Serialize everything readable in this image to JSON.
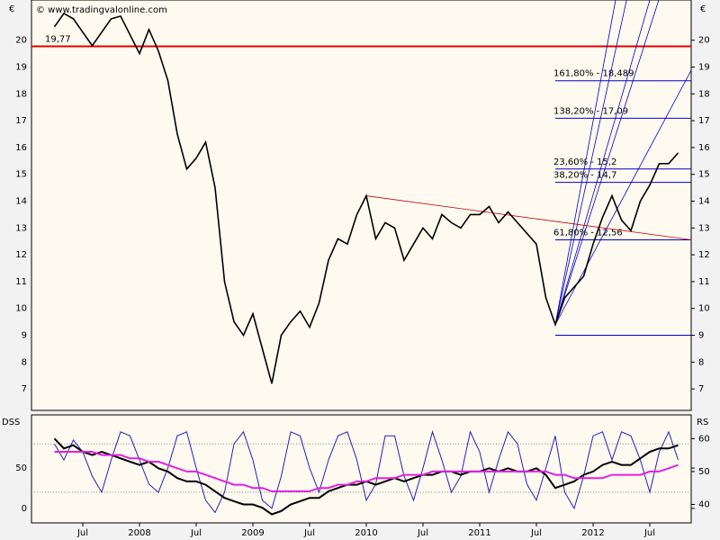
{
  "chart_data": [
    {
      "type": "line",
      "watermark": "© www.tradingvalonline.com",
      "y_label": "€",
      "y2_label": "€",
      "categories": [
        null,
        null,
        null,
        "Jul",
        null,
        null,
        null,
        null,
        null,
        "2008",
        null,
        null,
        null,
        null,
        null,
        "Jul",
        null,
        null,
        null,
        null,
        null,
        "2009",
        null,
        null,
        null,
        null,
        null,
        "Jul",
        null,
        null,
        null,
        null,
        null,
        "2010",
        null,
        null,
        null,
        null,
        null,
        "Jul",
        null,
        null,
        null,
        null,
        null,
        "2011",
        null,
        null,
        null,
        null,
        null,
        "Jul",
        null,
        null,
        null,
        null,
        null,
        "2012",
        null,
        null,
        null,
        null,
        null,
        "Jul",
        null,
        null,
        null
      ],
      "values": [
        20.5,
        21,
        20.8,
        20.3,
        19.8,
        20.3,
        20.8,
        20.9,
        20.2,
        19.5,
        20.4,
        19.6,
        18.5,
        16.5,
        15.2,
        15.6,
        16.2,
        14.5,
        11.0,
        9.5,
        9.0,
        9.8,
        8.5,
        7.2,
        9.0,
        9.5,
        9.9,
        9.3,
        10.2,
        11.8,
        12.6,
        12.4,
        13.5,
        14.2,
        12.6,
        13.2,
        13.0,
        11.8,
        12.4,
        13.0,
        12.6,
        13.5,
        13.2,
        13.0,
        13.5,
        13.5,
        13.8,
        13.2,
        13.6,
        13.2,
        12.8,
        12.4,
        10.4,
        9.4,
        10.4,
        10.8,
        11.2,
        12.4,
        13.4,
        14.2,
        13.3,
        12.9,
        14.0,
        14.6,
        15.4,
        15.4,
        15.8
      ],
      "color": "#000000",
      "ylim": [
        6.2,
        21.5
      ],
      "yticks": [
        7,
        8,
        9,
        10,
        11,
        12,
        13,
        14,
        15,
        16,
        17,
        18,
        19,
        20
      ],
      "lines": [
        {
          "value": 19.77,
          "label": "19,77",
          "color": "#e00000"
        },
        {
          "value": 18.489,
          "label": "161,80% - 18,489",
          "color": "#0000cc"
        },
        {
          "value": 17.09,
          "label": "138,20% - 17,09",
          "color": "#0000cc"
        },
        {
          "value": 15.2,
          "label": "23,60% - 15,2",
          "color": "#0000cc"
        },
        {
          "value": 14.7,
          "label": "38,20% - 14,7",
          "color": "#0000cc"
        },
        {
          "value": 12.56,
          "label": "61,80% - 12,56",
          "color": "#0000cc"
        },
        {
          "value": 9,
          "color": "#0000cc"
        }
      ]
    },
    {
      "type": "line",
      "y_label": "DSS",
      "y2_label": "RS",
      "ylim": [
        -18,
        116
      ],
      "yticks": [
        0,
        50
      ],
      "levels": [
        20,
        80
      ],
      "y2lim": [
        34.4,
        67.2
      ],
      "y2ticks": [
        40,
        50,
        60
      ],
      "series": [
        {
          "color": "#2020c0",
          "values": [
            80,
            60,
            85,
            70,
            40,
            20,
            60,
            95,
            90,
            60,
            30,
            20,
            50,
            90,
            95,
            50,
            10,
            -5,
            20,
            80,
            95,
            60,
            10,
            0,
            40,
            95,
            90,
            50,
            20,
            60,
            90,
            95,
            60,
            10,
            30,
            90,
            90,
            40,
            10,
            50,
            95,
            60,
            20,
            40,
            95,
            70,
            20,
            60,
            95,
            80,
            30,
            10,
            50,
            90,
            20,
            0,
            40,
            90,
            95,
            60,
            95,
            90,
            60,
            20,
            70,
            95,
            60
          ]
        },
        {
          "color": "#000000",
          "axis": "y2",
          "values": [
            60,
            57,
            58,
            56,
            55,
            56,
            55,
            54,
            53,
            52,
            53,
            51,
            50,
            48,
            47,
            47,
            46,
            44,
            42,
            41,
            40,
            40,
            39,
            37,
            38,
            40,
            41,
            42,
            42,
            44,
            45,
            46,
            46,
            47,
            46,
            47,
            48,
            47,
            48,
            49,
            49,
            50,
            50,
            49,
            50,
            50,
            51,
            50,
            51,
            50,
            50,
            51,
            49,
            45,
            46,
            47,
            49,
            50,
            52,
            53,
            52,
            52,
            54,
            56,
            57,
            57,
            58
          ]
        },
        {
          "color": "#e020e0",
          "axis": "y2",
          "values": [
            56,
            56,
            56,
            56,
            56,
            55,
            55,
            55,
            54,
            54,
            53,
            53,
            52,
            51,
            50,
            50,
            49,
            48,
            47,
            46,
            46,
            45,
            45,
            44,
            44,
            44,
            44,
            44,
            45,
            45,
            46,
            46,
            47,
            47,
            48,
            48,
            48,
            49,
            49,
            49,
            50,
            50,
            50,
            50,
            50,
            50,
            50,
            50,
            50,
            50,
            50,
            50,
            50,
            49,
            49,
            48,
            48,
            48,
            48,
            49,
            49,
            49,
            49,
            50,
            50,
            51,
            52
          ]
        }
      ]
    }
  ]
}
